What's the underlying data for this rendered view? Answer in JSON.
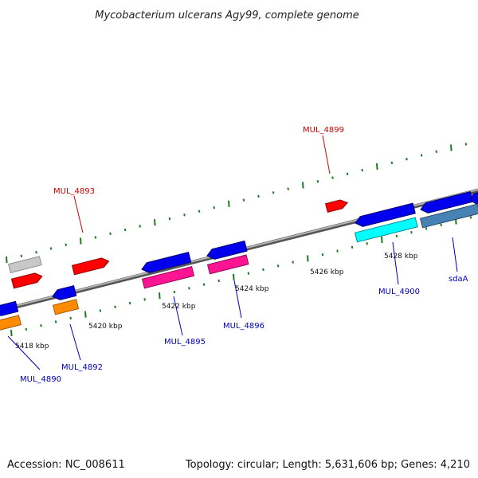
{
  "header": {
    "title": "Mycobacterium ulcerans Agy99, complete genome"
  },
  "footer": {
    "accession": "Accession: NC_008611",
    "summary": "Topology: circular; Length: 5,631,606 bp; Genes: 4,210"
  },
  "colors": {
    "backbone": "#8c8c8c",
    "tick": "#1f7a1f",
    "label_red": "#cc0000",
    "label_blue": "#0000bb"
  },
  "scale_labels": [
    {
      "id": "5418",
      "text": "5418 kbp"
    },
    {
      "id": "5420",
      "text": "5420 kbp"
    },
    {
      "id": "5422",
      "text": "5422 kbp"
    },
    {
      "id": "5424",
      "text": "5424 kbp"
    },
    {
      "id": "5426",
      "text": "5426 kbp"
    },
    {
      "id": "5428",
      "text": "5428 kbp"
    }
  ],
  "gene_labels": [
    {
      "id": "mul4893",
      "text": "MUL_4893",
      "color": "#cc0000"
    },
    {
      "id": "mul4899",
      "text": "MUL_4899",
      "color": "#cc0000"
    },
    {
      "id": "mul4890",
      "text": "MUL_4890",
      "color": "#0000bb"
    },
    {
      "id": "mul4892",
      "text": "MUL_4892",
      "color": "#0000bb"
    },
    {
      "id": "mul4895",
      "text": "MUL_4895",
      "color": "#0000bb"
    },
    {
      "id": "mul4896",
      "text": "MUL_4896",
      "color": "#0000bb"
    },
    {
      "id": "mul4900",
      "text": "MUL_4900",
      "color": "#0000bb"
    },
    {
      "id": "sdaa",
      "text": "sdaA",
      "color": "#0000bb"
    }
  ]
}
